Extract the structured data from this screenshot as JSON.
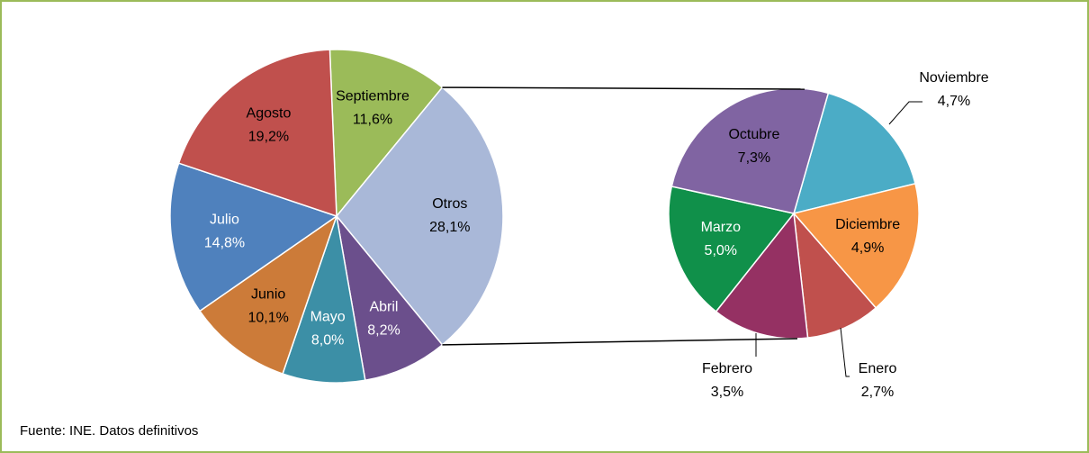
{
  "chart_data": [
    {
      "type": "pie",
      "categories": [
        "Septiembre",
        "Otros",
        "Abril",
        "Mayo",
        "Junio",
        "Julio",
        "Agosto"
      ],
      "values": [
        11.6,
        28.1,
        8.2,
        8.0,
        10.1,
        14.8,
        19.2
      ],
      "value_labels": [
        "11,6%",
        "28,1%",
        "8,2%",
        "8,0%",
        "10,1%",
        "14,8%",
        "19,2%"
      ],
      "colors": [
        "#9bbb59",
        "#a9b8d8",
        "#6b4f8c",
        "#3c8fa6",
        "#cc7b39",
        "#4f81bd",
        "#c0504d"
      ],
      "label_colors": [
        "#000000",
        "#000000",
        "#ffffff",
        "#ffffff",
        "#000000",
        "#ffffff",
        "#000000"
      ]
    },
    {
      "type": "pie",
      "categories": [
        "Noviembre",
        "Diciembre",
        "Enero",
        "Febrero",
        "Marzo",
        "Octubre"
      ],
      "values": [
        4.7,
        4.9,
        2.7,
        3.5,
        5.0,
        7.3
      ],
      "value_labels": [
        "4,7%",
        "4,9%",
        "2,7%",
        "3,5%",
        "5,0%",
        "7,3%"
      ],
      "colors": [
        "#4bacc6",
        "#f79646",
        "#c0504d",
        "#953163",
        "#10904a",
        "#8064a2"
      ],
      "label_colors": [
        "#000000",
        "#000000",
        "#000000",
        "#000000",
        "#ffffff",
        "#000000"
      ]
    }
  ],
  "source": "Fuente: INE. Datos definitivos"
}
